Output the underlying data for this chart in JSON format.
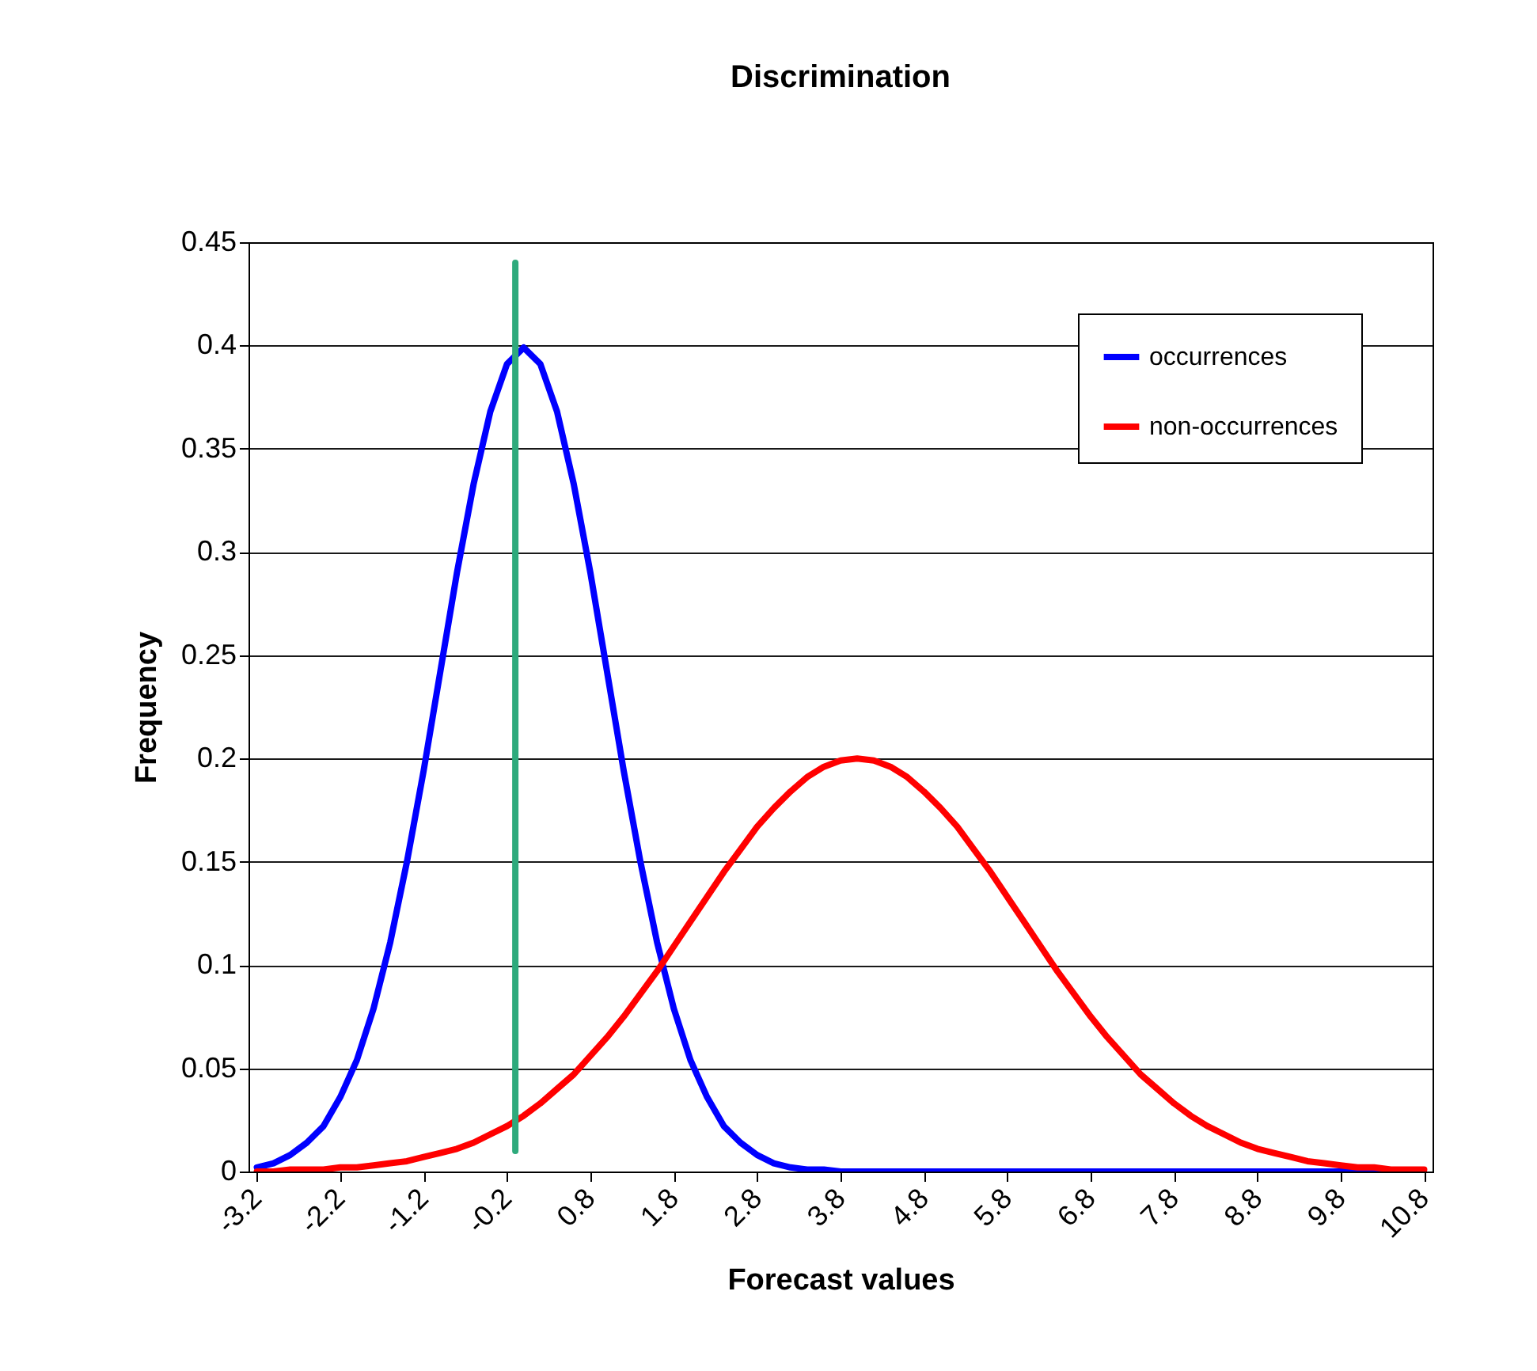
{
  "chart_data": {
    "type": "line",
    "title": "Discrimination",
    "xlabel": "Forecast values",
    "ylabel": "Frequency",
    "x": [
      -3.2,
      -3.0,
      -2.8,
      -2.6,
      -2.4,
      -2.2,
      -2.0,
      -1.8,
      -1.6,
      -1.4,
      -1.2,
      -1.0,
      -0.8,
      -0.6,
      -0.4,
      -0.2,
      0,
      0.2,
      0.4,
      0.6,
      0.8,
      1.0,
      1.2,
      1.4,
      1.6,
      1.8,
      2.0,
      2.2,
      2.4,
      2.6,
      2.8,
      3.0,
      3.2,
      3.4,
      3.6,
      3.8,
      4.0,
      4.2,
      4.4,
      4.6,
      4.8,
      5.0,
      5.2,
      5.4,
      5.6,
      5.8,
      6.0,
      6.2,
      6.4,
      6.6,
      6.8,
      7.0,
      7.2,
      7.4,
      7.6,
      7.8,
      8.0,
      8.2,
      8.4,
      8.6,
      8.8,
      9.0,
      9.2,
      9.4,
      9.6,
      9.8,
      10.0,
      10.2,
      10.4,
      10.6,
      10.8
    ],
    "series": [
      {
        "name": "occurrences",
        "color": "#0000ff",
        "values": [
          0.002,
          0.004,
          0.008,
          0.014,
          0.022,
          0.036,
          0.054,
          0.079,
          0.111,
          0.15,
          0.194,
          0.242,
          0.29,
          0.333,
          0.368,
          0.391,
          0.399,
          0.391,
          0.368,
          0.333,
          0.29,
          0.242,
          0.194,
          0.15,
          0.111,
          0.079,
          0.054,
          0.036,
          0.022,
          0.014,
          0.008,
          0.004,
          0.002,
          0.001,
          0.001,
          0,
          0,
          0,
          0,
          0,
          0,
          0,
          0,
          0,
          0,
          0,
          0,
          0,
          0,
          0,
          0,
          0,
          0,
          0,
          0,
          0,
          0,
          0,
          0,
          0,
          0,
          0,
          0,
          0,
          0,
          0,
          0,
          0,
          0,
          null,
          null
        ]
      },
      {
        "name": "non-occurrences",
        "color": "#ff0000",
        "values": [
          0,
          0,
          0.001,
          0.001,
          0.001,
          0.002,
          0.002,
          0.003,
          0.004,
          0.005,
          0.007,
          0.009,
          0.011,
          0.014,
          0.018,
          0.022,
          0.027,
          0.033,
          0.04,
          0.047,
          0.056,
          0.065,
          0.075,
          0.086,
          0.097,
          0.109,
          0.121,
          0.133,
          0.145,
          0.156,
          0.167,
          0.176,
          0.184,
          0.191,
          0.196,
          0.199,
          0.2,
          0.199,
          0.196,
          0.191,
          0.184,
          0.176,
          0.167,
          0.156,
          0.145,
          0.133,
          0.121,
          0.109,
          0.097,
          0.086,
          0.075,
          0.065,
          0.056,
          0.047,
          0.04,
          0.033,
          0.027,
          0.022,
          0.018,
          0.014,
          0.011,
          0.009,
          0.007,
          0.005,
          0.004,
          0.003,
          0.002,
          0.002,
          0.001,
          0.001,
          0.001
        ]
      },
      {
        "color": "#2eaa7c",
        "x": [
          -0.1,
          -0.1
        ],
        "values": [
          0.01,
          0.44
        ]
      }
    ],
    "xlim": [
      -3.3,
      10.9
    ],
    "xticks": [
      -3.2,
      -2.2,
      -1.2,
      -0.2,
      0.8,
      1.8,
      2.8,
      3.8,
      4.8,
      5.8,
      6.8,
      7.8,
      8.8,
      9.8,
      10.8
    ],
    "ylim": [
      0,
      0.45
    ],
    "yticks": [
      0,
      0.05,
      0.1,
      0.15,
      0.2,
      0.25,
      0.3,
      0.35,
      0.4,
      0.45
    ],
    "grid": "y",
    "legend": "top right",
    "marker": "none",
    "line_style": "solid"
  }
}
